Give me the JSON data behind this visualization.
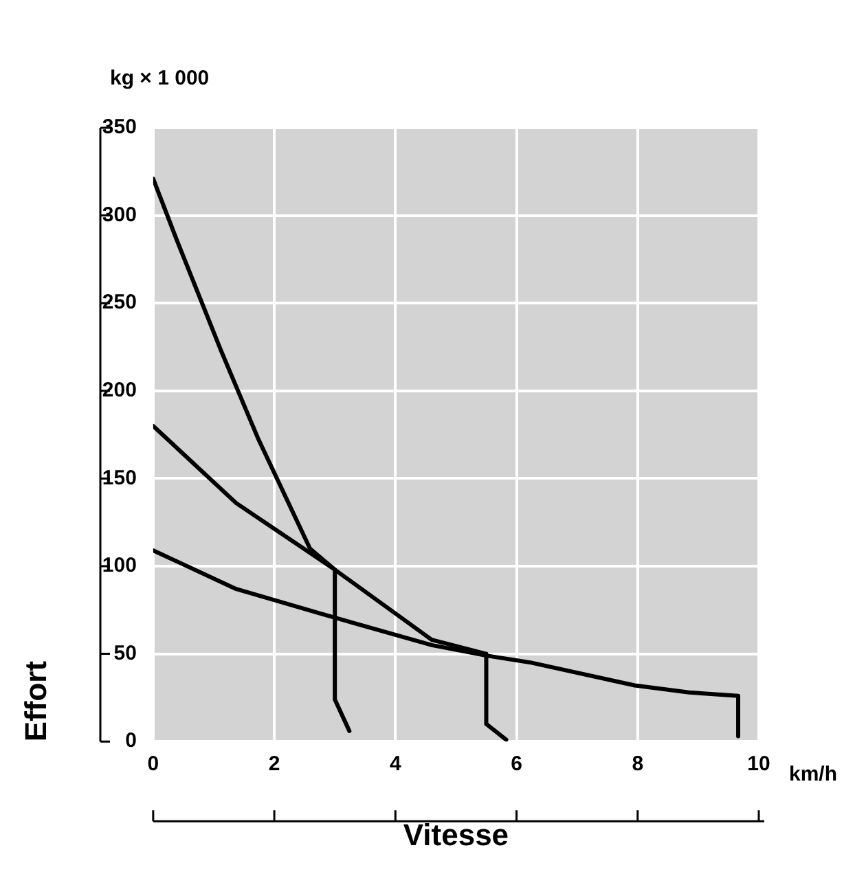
{
  "chart_data": {
    "type": "line",
    "xlabel": "Vitesse",
    "ylabel": "Effort",
    "annotations": [
      "kg × 1 000",
      "km/h"
    ],
    "series": [
      {
        "color": "#000000",
        "x": [
          0,
          0.39,
          1.12,
          1.73,
          2.59,
          3.0,
          3.0,
          3.24
        ],
        "values": [
          321,
          286,
          223,
          173,
          110,
          98,
          24,
          6
        ]
      },
      {
        "color": "#000000",
        "x": [
          0,
          1.37,
          3.0,
          4.6,
          5.5,
          5.5,
          5.83
        ],
        "values": [
          180,
          136,
          98,
          58,
          50,
          10,
          1
        ]
      },
      {
        "color": "#000000",
        "x": [
          0,
          1.37,
          2.76,
          4.6,
          5.5,
          6.24,
          7.95,
          8.85,
          9.66,
          9.66
        ],
        "values": [
          109,
          87,
          73,
          55,
          49,
          45,
          32,
          28,
          26,
          3
        ]
      }
    ],
    "xlim": [
      0,
      10
    ],
    "xticks": [
      0,
      2,
      4,
      6,
      8,
      10
    ],
    "ylim": [
      0,
      350
    ],
    "yticks": [
      0,
      50,
      100,
      150,
      200,
      250,
      300,
      350
    ],
    "grid": true,
    "legend": false,
    "marker": "none",
    "line_style": "solid"
  }
}
